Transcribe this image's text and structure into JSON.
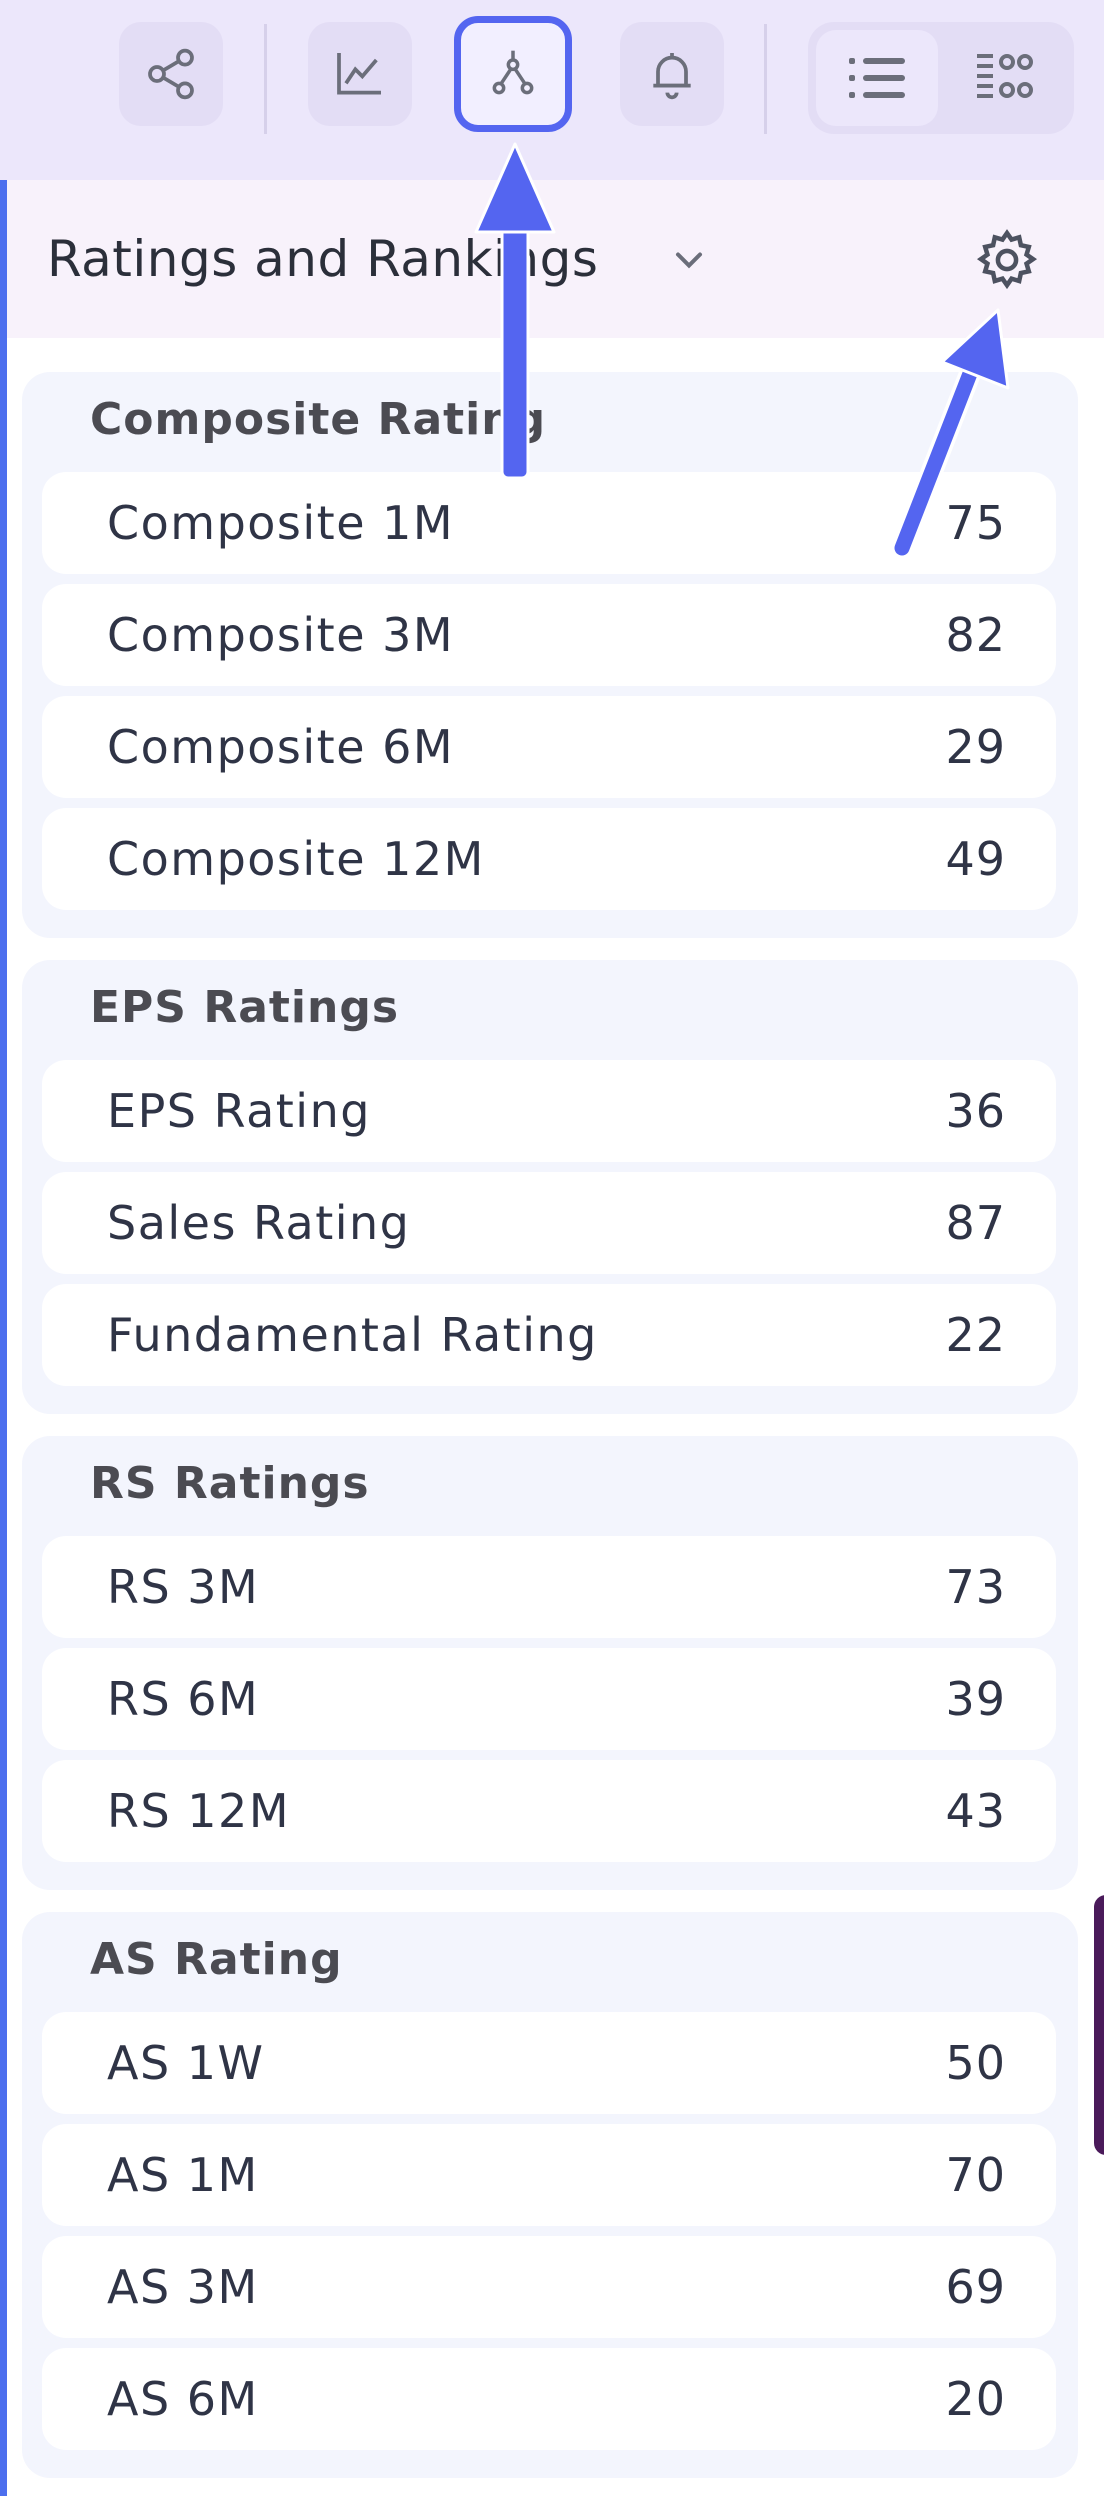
{
  "toolbar": {
    "buttons": [
      {
        "icon": "share-icon"
      },
      {
        "icon": "line-chart-icon"
      },
      {
        "icon": "network-icon",
        "active": true
      },
      {
        "icon": "bell-icon"
      }
    ],
    "view_toggle": [
      {
        "icon": "list-view-icon",
        "selected": true
      },
      {
        "icon": "grid-view-icon",
        "selected": false
      }
    ]
  },
  "panel": {
    "title": "Ratings and Rankings"
  },
  "sections": [
    {
      "title": "Composite Rating",
      "rows": [
        {
          "label": "Composite 1M",
          "value": "75"
        },
        {
          "label": "Composite 3M",
          "value": "82"
        },
        {
          "label": "Composite 6M",
          "value": "29"
        },
        {
          "label": "Composite 12M",
          "value": "49"
        }
      ]
    },
    {
      "title": "EPS Ratings",
      "rows": [
        {
          "label": "EPS Rating",
          "value": "36"
        },
        {
          "label": "Sales Rating",
          "value": "87"
        },
        {
          "label": "Fundamental Rating",
          "value": "22"
        }
      ]
    },
    {
      "title": "RS Ratings",
      "rows": [
        {
          "label": "RS 3M",
          "value": "73"
        },
        {
          "label": "RS 6M",
          "value": "39"
        },
        {
          "label": "RS 12M",
          "value": "43"
        }
      ]
    },
    {
      "title": "AS Rating",
      "rows": [
        {
          "label": "AS 1W",
          "value": "50"
        },
        {
          "label": "AS 1M",
          "value": "70"
        },
        {
          "label": "AS 3M",
          "value": "69"
        },
        {
          "label": "AS 6M",
          "value": "20"
        }
      ]
    }
  ],
  "colors": {
    "accent": "#5465f0",
    "toolbar_bg": "#ece7fb",
    "section_bg": "#f3f5fd"
  }
}
